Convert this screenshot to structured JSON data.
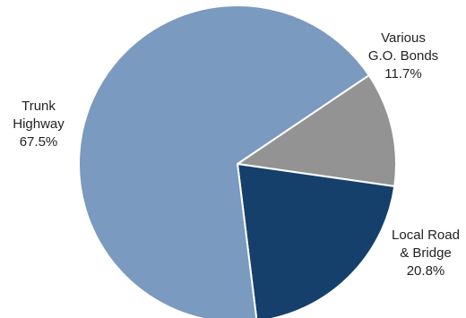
{
  "chart_data": {
    "type": "pie",
    "title": "",
    "start_angle_deg": 56,
    "direction": "clockwise",
    "slices": [
      {
        "key": "various",
        "label_lines": [
          "Various",
          "G.O. Bonds"
        ],
        "value": 11.7,
        "value_label": "11.7%",
        "color": "#939393"
      },
      {
        "key": "local",
        "label_lines": [
          "Local Road",
          "& Bridge"
        ],
        "value": 20.8,
        "value_label": "20.8%",
        "color": "#15406b"
      },
      {
        "key": "trunk",
        "label_lines": [
          "Trunk",
          "Highway"
        ],
        "value": 67.5,
        "value_label": "67.5%",
        "color": "#7a9abf"
      }
    ],
    "slice_border_color": "#ffffff",
    "legend": "none"
  }
}
